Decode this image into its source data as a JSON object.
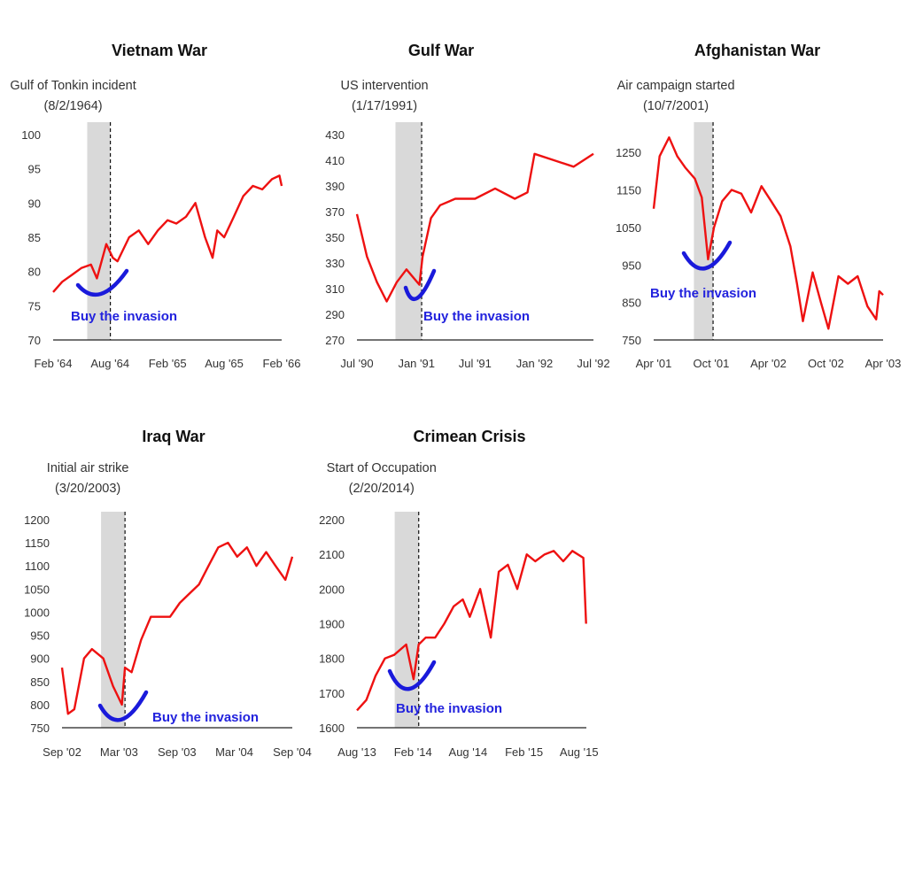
{
  "colors": {
    "series": "#ee1111",
    "band": "#d9d9d9",
    "annotation": "#1a1adb",
    "axis": "#222222"
  },
  "chart_data": [
    {
      "type": "line",
      "title": "Vietnam War",
      "event_label": "Gulf of Tonkin incident",
      "event_date_label": "(8/2/1964)",
      "event_date": "1964-08-02",
      "band_start": "1964-05-20",
      "callout": "Buy the invasion",
      "xlim": [
        "1964-02-01",
        "1966-02-01"
      ],
      "x_ticks": [
        [
          "1964-02-01",
          "Feb '64"
        ],
        [
          "1964-08-01",
          "Aug '64"
        ],
        [
          "1965-02-01",
          "Feb '65"
        ],
        [
          "1965-08-01",
          "Aug '65"
        ],
        [
          "1966-02-01",
          "Feb '66"
        ]
      ],
      "ylim": [
        70,
        100
      ],
      "y_ticks": [
        70,
        75,
        80,
        85,
        90,
        95,
        100
      ],
      "points": [
        [
          "1964-02-01",
          77
        ],
        [
          "1964-03-01",
          78.5
        ],
        [
          "1964-04-01",
          79.5
        ],
        [
          "1964-05-01",
          80.5
        ],
        [
          "1964-06-01",
          81
        ],
        [
          "1964-06-20",
          79
        ],
        [
          "1964-07-20",
          84
        ],
        [
          "1964-08-10",
          82
        ],
        [
          "1964-08-25",
          81.5
        ],
        [
          "1964-10-01",
          85
        ],
        [
          "1964-11-01",
          86
        ],
        [
          "1964-12-01",
          84
        ],
        [
          "1965-01-01",
          86
        ],
        [
          "1965-02-01",
          87.5
        ],
        [
          "1965-03-01",
          87
        ],
        [
          "1965-04-01",
          88
        ],
        [
          "1965-05-01",
          90
        ],
        [
          "1965-06-01",
          85
        ],
        [
          "1965-06-25",
          82
        ],
        [
          "1965-07-10",
          86
        ],
        [
          "1965-08-01",
          85
        ],
        [
          "1965-09-01",
          88
        ],
        [
          "1965-10-01",
          91
        ],
        [
          "1965-11-01",
          92.5
        ],
        [
          "1965-12-01",
          92
        ],
        [
          "1966-01-01",
          93.5
        ],
        [
          "1966-01-25",
          94
        ],
        [
          "1966-02-01",
          92.5
        ]
      ]
    },
    {
      "type": "line",
      "title": "Gulf War",
      "event_label": "US intervention",
      "event_date_label": "(1/17/1991)",
      "event_date": "1991-01-17",
      "band_start": "1990-10-28",
      "callout": "Buy the invasion",
      "xlim": [
        "1990-07-01",
        "1992-07-01"
      ],
      "x_ticks": [
        [
          "1990-07-01",
          "Jul '90"
        ],
        [
          "1991-01-01",
          "Jan '91"
        ],
        [
          "1991-07-01",
          "Jul '91"
        ],
        [
          "1992-01-01",
          "Jan '92"
        ],
        [
          "1992-07-01",
          "Jul '92"
        ]
      ],
      "ylim": [
        270,
        430
      ],
      "y_ticks": [
        270,
        290,
        310,
        330,
        350,
        370,
        390,
        410,
        430
      ],
      "points": [
        [
          "1990-07-01",
          368
        ],
        [
          "1990-08-01",
          335
        ],
        [
          "1990-09-01",
          315
        ],
        [
          "1990-10-01",
          300
        ],
        [
          "1990-11-01",
          315
        ],
        [
          "1990-12-01",
          325
        ],
        [
          "1991-01-10",
          313
        ],
        [
          "1991-01-20",
          335
        ],
        [
          "1991-02-15",
          365
        ],
        [
          "1991-03-15",
          375
        ],
        [
          "1991-05-01",
          380
        ],
        [
          "1991-07-01",
          380
        ],
        [
          "1991-09-01",
          388
        ],
        [
          "1991-11-01",
          380
        ],
        [
          "1991-12-10",
          385
        ],
        [
          "1992-01-01",
          415
        ],
        [
          "1992-03-01",
          410
        ],
        [
          "1992-05-01",
          405
        ],
        [
          "1992-07-01",
          415
        ]
      ]
    },
    {
      "type": "line",
      "title": "Afghanistan War",
      "event_label": "Air campaign started",
      "event_date_label": "(10/7/2001)",
      "event_date": "2001-10-07",
      "band_start": "2001-08-07",
      "callout": "Buy the invasion",
      "xlim": [
        "2001-04-01",
        "2003-04-01"
      ],
      "x_ticks": [
        [
          "2001-04-01",
          "Apr '01"
        ],
        [
          "2001-10-01",
          "Oct '01"
        ],
        [
          "2002-04-01",
          "Apr '02"
        ],
        [
          "2002-10-01",
          "Oct '02"
        ],
        [
          "2003-04-01",
          "Apr '03"
        ]
      ],
      "ylim": [
        750,
        1300
      ],
      "y_ticks": [
        750,
        850,
        950,
        1050,
        1150,
        1250
      ],
      "points": [
        [
          "2001-04-01",
          1100
        ],
        [
          "2001-04-20",
          1240
        ],
        [
          "2001-05-20",
          1290
        ],
        [
          "2001-06-15",
          1240
        ],
        [
          "2001-07-10",
          1210
        ],
        [
          "2001-08-10",
          1180
        ],
        [
          "2001-09-01",
          1130
        ],
        [
          "2001-09-21",
          965
        ],
        [
          "2001-10-10",
          1050
        ],
        [
          "2001-11-05",
          1120
        ],
        [
          "2001-12-05",
          1150
        ],
        [
          "2002-01-05",
          1140
        ],
        [
          "2002-02-05",
          1090
        ],
        [
          "2002-03-10",
          1160
        ],
        [
          "2002-04-10",
          1120
        ],
        [
          "2002-05-10",
          1080
        ],
        [
          "2002-06-10",
          1000
        ],
        [
          "2002-07-01",
          900
        ],
        [
          "2002-07-20",
          800
        ],
        [
          "2002-08-20",
          930
        ],
        [
          "2002-09-15",
          850
        ],
        [
          "2002-10-09",
          780
        ],
        [
          "2002-11-10",
          920
        ],
        [
          "2002-12-10",
          900
        ],
        [
          "2003-01-10",
          920
        ],
        [
          "2003-02-10",
          840
        ],
        [
          "2003-03-10",
          805
        ],
        [
          "2003-03-20",
          880
        ],
        [
          "2003-04-01",
          870
        ]
      ]
    },
    {
      "type": "line",
      "title": "Iraq War",
      "event_label": "Initial air strike",
      "event_date_label": "(3/20/2003)",
      "event_date": "2003-03-20",
      "band_start": "2003-01-03",
      "callout": "Buy the invasion",
      "xlim": [
        "2002-09-01",
        "2004-09-01"
      ],
      "x_ticks": [
        [
          "2002-09-01",
          "Sep '02"
        ],
        [
          "2003-03-01",
          "Mar '03"
        ],
        [
          "2003-09-01",
          "Sep '03"
        ],
        [
          "2004-03-01",
          "Mar '04"
        ],
        [
          "2004-09-01",
          "Sep '04"
        ]
      ],
      "ylim": [
        750,
        1200
      ],
      "y_ticks": [
        750,
        800,
        850,
        900,
        950,
        1000,
        1050,
        1100,
        1150,
        1200
      ],
      "points": [
        [
          "2002-09-01",
          880
        ],
        [
          "2002-09-20",
          780
        ],
        [
          "2002-10-10",
          790
        ],
        [
          "2002-11-10",
          900
        ],
        [
          "2002-12-05",
          920
        ],
        [
          "2003-01-10",
          900
        ],
        [
          "2003-02-10",
          840
        ],
        [
          "2003-03-10",
          800
        ],
        [
          "2003-03-20",
          880
        ],
        [
          "2003-04-10",
          870
        ],
        [
          "2003-05-10",
          940
        ],
        [
          "2003-06-10",
          990
        ],
        [
          "2003-07-10",
          990
        ],
        [
          "2003-08-10",
          990
        ],
        [
          "2003-09-10",
          1020
        ],
        [
          "2003-10-10",
          1040
        ],
        [
          "2003-11-10",
          1060
        ],
        [
          "2003-12-10",
          1100
        ],
        [
          "2004-01-10",
          1140
        ],
        [
          "2004-02-10",
          1150
        ],
        [
          "2004-03-10",
          1120
        ],
        [
          "2004-04-10",
          1140
        ],
        [
          "2004-05-10",
          1100
        ],
        [
          "2004-06-10",
          1130
        ],
        [
          "2004-07-10",
          1100
        ],
        [
          "2004-08-10",
          1070
        ],
        [
          "2004-09-01",
          1120
        ]
      ]
    },
    {
      "type": "line",
      "title": "Crimean Crisis",
      "event_label": "Start of Occupation",
      "event_date_label": "(2/20/2014)",
      "event_date": "2014-02-20",
      "band_start": "2013-12-03",
      "callout": "Buy the invasion",
      "xlim": [
        "2013-08-01",
        "2015-08-25"
      ],
      "x_ticks": [
        [
          "2013-08-01",
          "Aug '13"
        ],
        [
          "2014-02-01",
          "Feb '14"
        ],
        [
          "2014-08-01",
          "Aug '14"
        ],
        [
          "2015-02-01",
          "Feb '15"
        ],
        [
          "2015-08-01",
          "Aug '15"
        ]
      ],
      "ylim": [
        1600,
        2200
      ],
      "y_ticks": [
        1600,
        1700,
        1800,
        1900,
        2000,
        2100,
        2200
      ],
      "points": [
        [
          "2013-08-01",
          1650
        ],
        [
          "2013-09-01",
          1680
        ],
        [
          "2013-10-01",
          1750
        ],
        [
          "2013-11-01",
          1800
        ],
        [
          "2013-12-01",
          1810
        ],
        [
          "2014-01-10",
          1840
        ],
        [
          "2014-02-03",
          1740
        ],
        [
          "2014-02-20",
          1840
        ],
        [
          "2014-03-15",
          1860
        ],
        [
          "2014-04-15",
          1860
        ],
        [
          "2014-05-15",
          1900
        ],
        [
          "2014-06-15",
          1950
        ],
        [
          "2014-07-15",
          1970
        ],
        [
          "2014-08-07",
          1920
        ],
        [
          "2014-09-10",
          2000
        ],
        [
          "2014-10-15",
          1860
        ],
        [
          "2014-11-10",
          2050
        ],
        [
          "2014-12-10",
          2070
        ],
        [
          "2015-01-10",
          2000
        ],
        [
          "2015-02-10",
          2100
        ],
        [
          "2015-03-10",
          2080
        ],
        [
          "2015-04-10",
          2100
        ],
        [
          "2015-05-10",
          2110
        ],
        [
          "2015-06-10",
          2080
        ],
        [
          "2015-07-10",
          2110
        ],
        [
          "2015-08-15",
          2090
        ],
        [
          "2015-08-24",
          1900
        ]
      ]
    }
  ]
}
